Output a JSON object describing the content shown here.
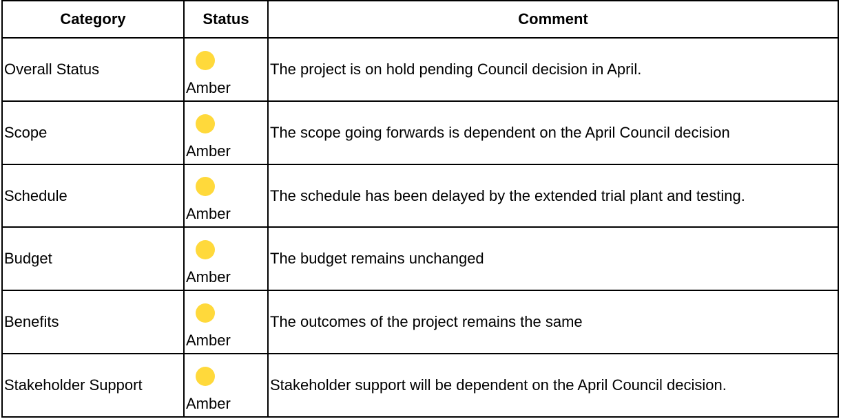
{
  "table": {
    "columns": [
      "Category",
      "Status",
      "Comment"
    ],
    "rows": [
      [
        "Overall Status",
        "Amber",
        "The project is on hold pending Council decision in April."
      ],
      [
        "Scope",
        "Amber",
        "The scope going forwards is dependent on the April Council decision"
      ],
      [
        "Schedule",
        "Amber",
        "The schedule has been delayed by the extended trial plant and testing."
      ],
      [
        "Budget",
        "Amber",
        "The budget remains unchanged"
      ],
      [
        "Benefits",
        "Amber",
        "The outcomes of the project remains the same"
      ],
      [
        "Stakeholder Support",
        "Amber",
        "Stakeholder support will be dependent on the April Council decision."
      ]
    ]
  }
}
